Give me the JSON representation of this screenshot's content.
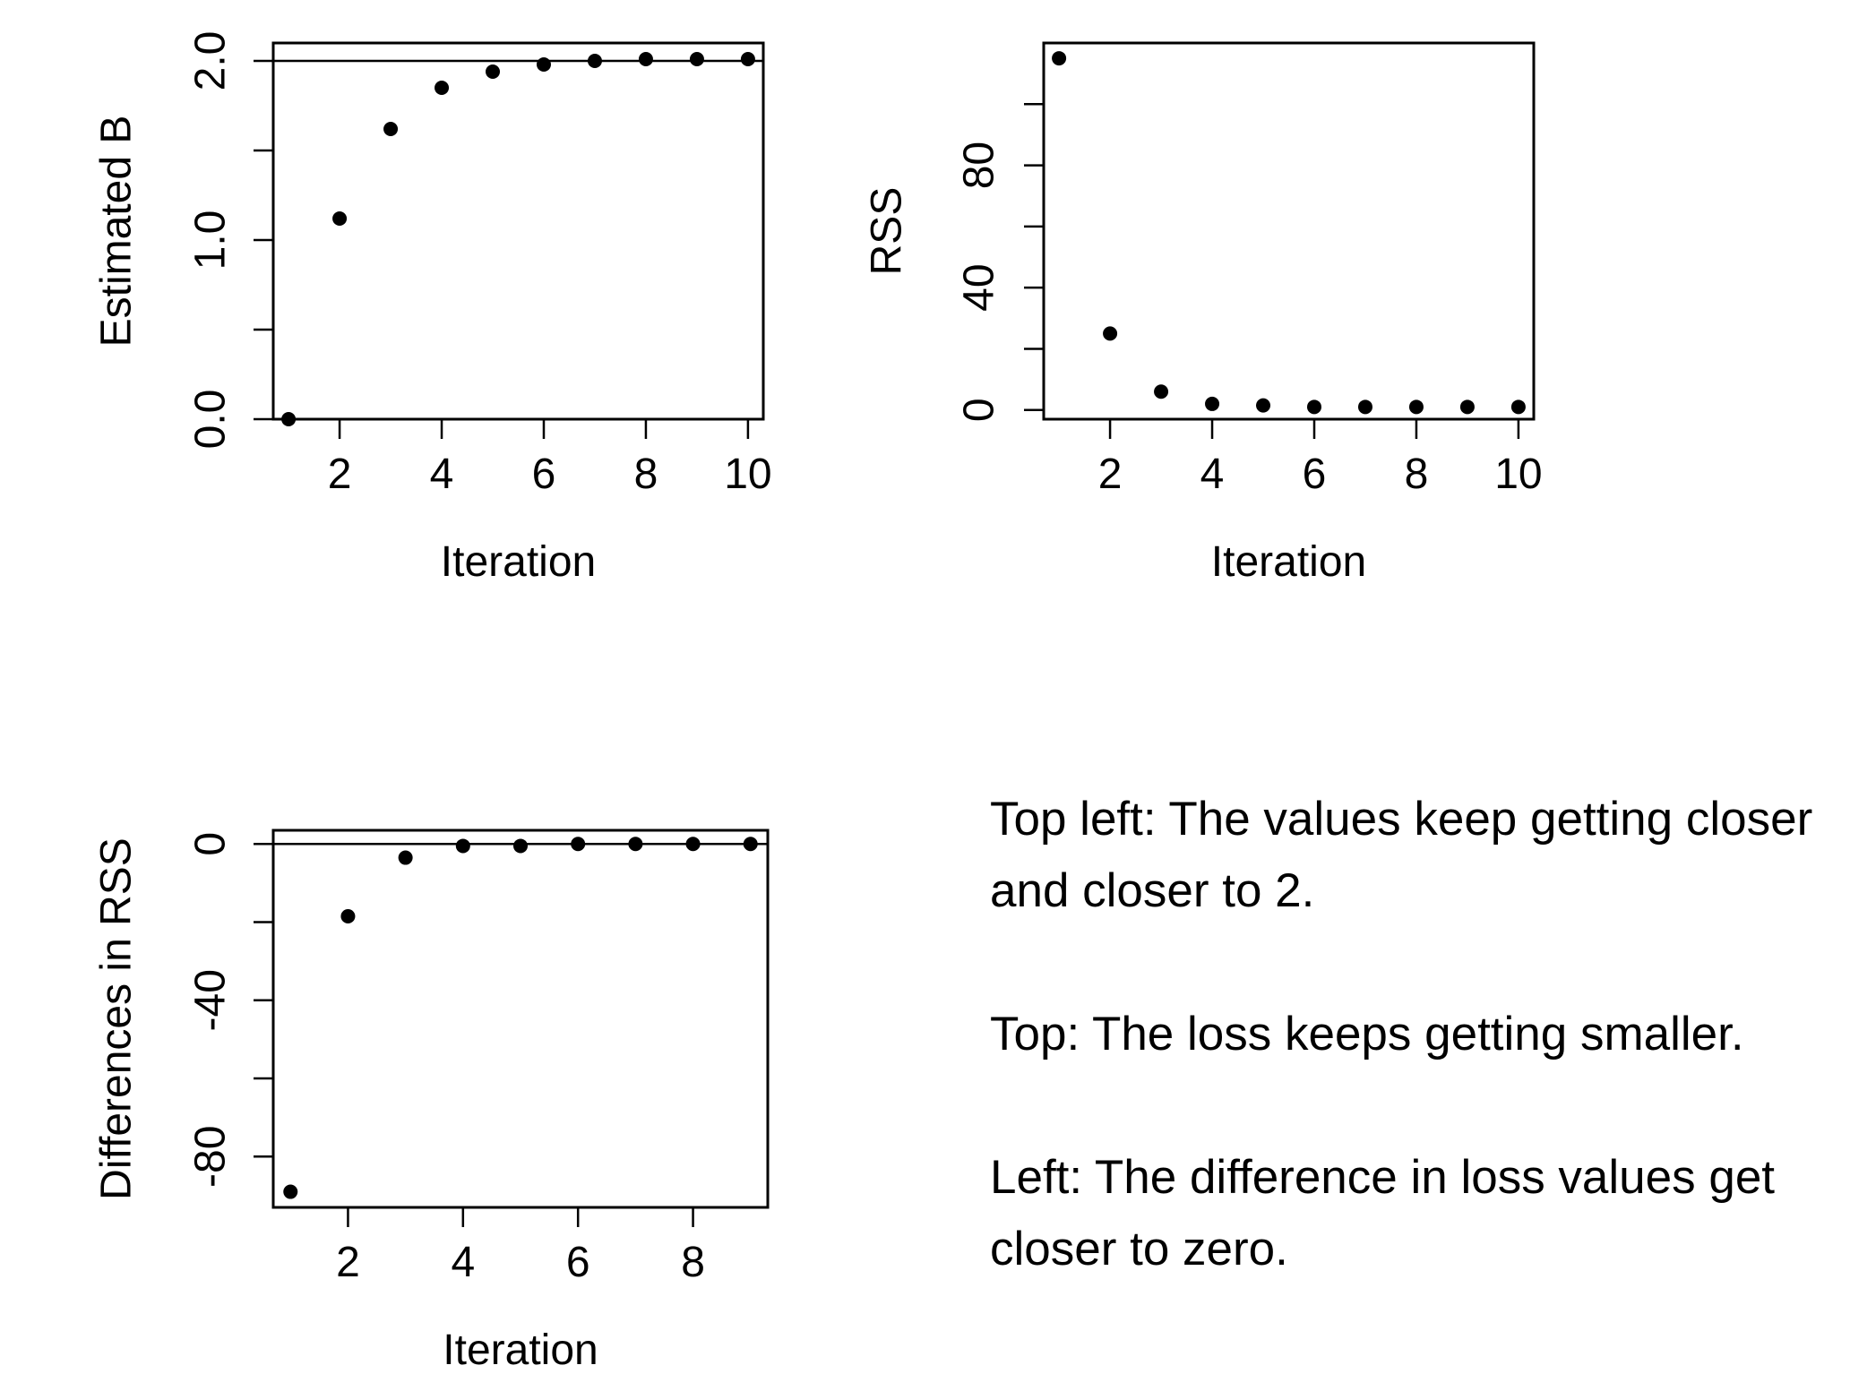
{
  "chart_data": [
    {
      "id": "estimated-b",
      "type": "scatter",
      "xlabel": "Iteration",
      "ylabel": "Estimated B",
      "xlim": [
        0.7,
        10.3
      ],
      "ylim": [
        0.0,
        2.1
      ],
      "xticks": [
        2,
        4,
        6,
        8,
        10
      ],
      "xtick_labels": [
        "2",
        "4",
        "6",
        "8",
        "10"
      ],
      "yticks": [
        0.0,
        0.5,
        1.0,
        1.5,
        2.0
      ],
      "ytick_labels": [
        "0.0",
        "",
        "1.0",
        "",
        "2.0"
      ],
      "reference_line": 2.0,
      "x": [
        1,
        2,
        3,
        4,
        5,
        6,
        7,
        8,
        9,
        10
      ],
      "y": [
        0.0,
        1.12,
        1.62,
        1.85,
        1.94,
        1.98,
        2.0,
        2.01,
        2.01,
        2.01
      ]
    },
    {
      "id": "rss",
      "type": "scatter",
      "xlabel": "Iteration",
      "ylabel": "RSS",
      "xlim": [
        0.7,
        10.3
      ],
      "ylim": [
        -3,
        120
      ],
      "xticks": [
        2,
        4,
        6,
        8,
        10
      ],
      "xtick_labels": [
        "2",
        "4",
        "6",
        "8",
        "10"
      ],
      "yticks": [
        0,
        20,
        40,
        60,
        80,
        100
      ],
      "ytick_labels": [
        "0",
        "",
        "40",
        "",
        "80",
        ""
      ],
      "x": [
        1,
        2,
        3,
        4,
        5,
        6,
        7,
        8,
        9,
        10
      ],
      "y": [
        115,
        25,
        6,
        2,
        1.5,
        1,
        1,
        1,
        1,
        1
      ]
    },
    {
      "id": "rss-differences",
      "type": "scatter",
      "xlabel": "Iteration",
      "ylabel": "Differences in RSS",
      "xlim": [
        0.7,
        9.3
      ],
      "ylim": [
        -93,
        3.5
      ],
      "xticks": [
        2,
        4,
        6,
        8
      ],
      "xtick_labels": [
        "2",
        "4",
        "6",
        "8"
      ],
      "yticks": [
        0,
        -20,
        -40,
        -60,
        -80
      ],
      "ytick_labels": [
        "0",
        "",
        "-40",
        "",
        "-80"
      ],
      "reference_line": 0,
      "x": [
        1,
        2,
        3,
        4,
        5,
        6,
        7,
        8,
        9
      ],
      "y": [
        -89,
        -18.5,
        -3.5,
        -0.5,
        -0.5,
        0,
        0,
        0,
        0
      ]
    }
  ],
  "notes": [
    "Top left: The values keep getting closer and closer to 2.",
    "Top: The loss keeps getting smaller.",
    "Left: The difference in loss values get closer to zero."
  ]
}
